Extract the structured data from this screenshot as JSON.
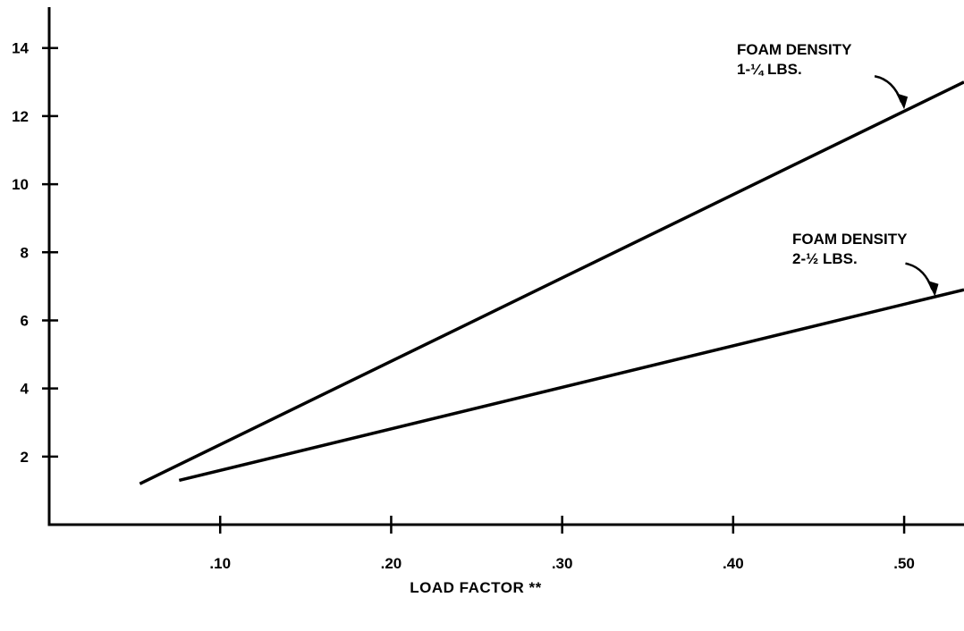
{
  "chart_data": {
    "type": "line",
    "title": "",
    "xlabel": "LOAD FACTOR **",
    "ylabel": "",
    "xlim": [
      0.0,
      0.535
    ],
    "ylim": [
      0.0,
      15.2
    ],
    "x_ticks": [
      {
        "value": 0.1,
        "label": ".10"
      },
      {
        "value": 0.2,
        "label": ".20"
      },
      {
        "value": 0.3,
        "label": ".30"
      },
      {
        "value": 0.4,
        "label": ".40"
      },
      {
        "value": 0.5,
        "label": ".50"
      }
    ],
    "y_ticks": [
      {
        "value": 2,
        "label": "2"
      },
      {
        "value": 4,
        "label": "4"
      },
      {
        "value": 6,
        "label": "6"
      },
      {
        "value": 8,
        "label": "8"
      },
      {
        "value": 10,
        "label": "10"
      },
      {
        "value": 12,
        "label": "12"
      },
      {
        "value": 14,
        "label": "14"
      }
    ],
    "grid": false,
    "series": [
      {
        "x": [
          0.053,
          0.535
        ],
        "y": [
          1.2,
          13.0
        ]
      },
      {
        "x": [
          0.076,
          0.535
        ],
        "y": [
          1.3,
          6.9
        ]
      }
    ],
    "annotations": [
      {
        "line1": "FOAM DENSITY",
        "line2": "1-¼ LBS.",
        "series_index": 0,
        "points_to": {
          "x": 0.5,
          "y": 12.2
        }
      },
      {
        "line1": "FOAM DENSITY",
        "line2": "2-½ LBS.",
        "series_index": 1,
        "points_to": {
          "x": 0.518,
          "y": 6.7
        }
      }
    ]
  }
}
